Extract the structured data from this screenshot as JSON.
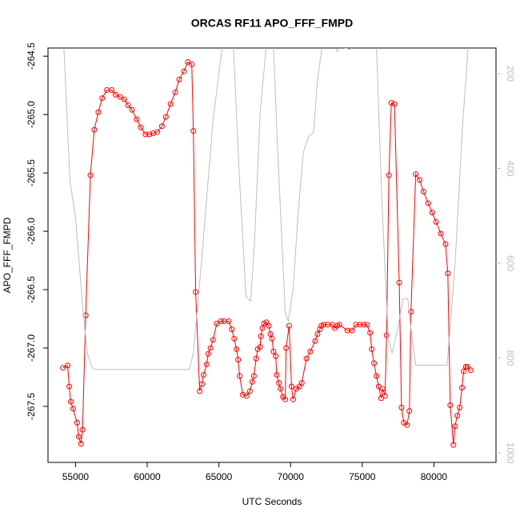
{
  "chart_data": {
    "type": "line",
    "title": "ORCAS RF11 APO_FFF_FMPD",
    "x_label": "UTC Seconds",
    "y_label": "APO_FFF_FMPD",
    "xlim": [
      53080,
      84330
    ],
    "xticks": [
      55000,
      60000,
      65000,
      70000,
      75000,
      80000
    ],
    "ylim": [
      -267.98,
      -264.43
    ],
    "yticks": [
      {
        "value": -267.5,
        "label": "-267.5"
      },
      {
        "value": -267,
        "label": "-267.0"
      },
      {
        "value": -266.5,
        "label": "-266.5"
      },
      {
        "value": -266,
        "label": "-266.0"
      },
      {
        "value": -265.5,
        "label": "-265.5"
      },
      {
        "value": -265,
        "label": "-265.0"
      },
      {
        "value": -264.5,
        "label": "-264.5"
      }
    ],
    "y2lim": [
      1020,
      146
    ],
    "y2ticks": [
      200,
      400,
      600,
      800,
      1000
    ],
    "series": [
      {
        "color": "#ff0000",
        "markers": true,
        "x": [
          54120,
          54450,
          54560,
          54670,
          54830,
          55110,
          55220,
          55380,
          55490,
          55710,
          56040,
          56310,
          56590,
          56860,
          57190,
          57520,
          57790,
          58120,
          58400,
          58670,
          58940,
          59270,
          59550,
          59880,
          60150,
          60420,
          60700,
          61030,
          61300,
          61630,
          61960,
          62230,
          62560,
          62830,
          63110,
          63220,
          63380,
          63660,
          63820,
          63930,
          64150,
          64260,
          64420,
          64590,
          64860,
          65140,
          65360,
          65680,
          65900,
          66070,
          66230,
          66340,
          66450,
          66670,
          66940,
          67160,
          67330,
          67440,
          67600,
          67710,
          67880,
          67930,
          68040,
          68150,
          68310,
          68480,
          68590,
          68700,
          68810,
          68970,
          69030,
          69190,
          69300,
          69470,
          69630,
          69690,
          69900,
          70070,
          70180,
          70400,
          70620,
          70780,
          71110,
          71380,
          71710,
          71880,
          72040,
          72150,
          72310,
          72590,
          72920,
          73080,
          73250,
          73410,
          73960,
          74290,
          74560,
          74840,
          75110,
          75330,
          75550,
          75660,
          75820,
          75990,
          76150,
          76320,
          76420,
          76590,
          76700,
          76860,
          77030,
          77250,
          77580,
          77740,
          77900,
          78120,
          78290,
          78400,
          78730,
          79000,
          79270,
          79600,
          79880,
          80150,
          80480,
          80810,
          80970,
          81140,
          81360,
          81470,
          81630,
          81800,
          81960,
          82070,
          82230,
          82340,
          82560
        ],
        "values": [
          -267.17,
          -267.15,
          -267.33,
          -267.46,
          -267.52,
          -267.64,
          -267.76,
          -267.82,
          -267.7,
          -266.72,
          -265.52,
          -265.13,
          -264.98,
          -264.86,
          -264.79,
          -264.79,
          -264.83,
          -264.85,
          -264.87,
          -264.92,
          -264.96,
          -265.04,
          -265.11,
          -265.17,
          -265.17,
          -265.16,
          -265.15,
          -265.1,
          -265.02,
          -264.91,
          -264.81,
          -264.7,
          -264.63,
          -264.55,
          -264.57,
          -265.14,
          -266.52,
          -267.37,
          -267.31,
          -267.23,
          -267.14,
          -267.05,
          -267,
          -266.93,
          -266.79,
          -266.77,
          -266.77,
          -266.77,
          -266.84,
          -266.92,
          -267.01,
          -267.1,
          -267.24,
          -267.4,
          -267.41,
          -267.37,
          -267.29,
          -267.24,
          -267.09,
          -267.01,
          -266.99,
          -266.9,
          -266.83,
          -266.79,
          -266.78,
          -266.81,
          -266.88,
          -266.92,
          -267.03,
          -267.07,
          -267.23,
          -267.3,
          -267.35,
          -267.42,
          -267.44,
          -267,
          -266.81,
          -267.33,
          -267.44,
          -267.35,
          -267.33,
          -267.3,
          -267.09,
          -267.03,
          -266.94,
          -266.88,
          -266.84,
          -266.81,
          -266.8,
          -266.8,
          -266.8,
          -266.83,
          -266.81,
          -266.8,
          -266.85,
          -266.85,
          -266.8,
          -266.8,
          -266.8,
          -266.8,
          -266.87,
          -267.01,
          -267.13,
          -267.24,
          -267.33,
          -267.43,
          -267.35,
          -267.41,
          -266.89,
          -265.52,
          -264.9,
          -264.91,
          -266.44,
          -267.51,
          -267.64,
          -267.66,
          -267.54,
          -266.69,
          -265.51,
          -265.56,
          -265.66,
          -265.76,
          -265.84,
          -265.92,
          -266.02,
          -266.11,
          -266.36,
          -267.49,
          -267.83,
          -267.67,
          -267.58,
          -267.51,
          -267.34,
          -267.2,
          -267.16,
          -267.16,
          -267.19
        ]
      },
      {
        "color": "#bebebe",
        "axis": "y2",
        "markers": false,
        "x": [
          54180,
          54610,
          55000,
          55490,
          55820,
          56150,
          56370,
          62940,
          63220,
          63770,
          64590,
          65250,
          66010,
          66400,
          66890,
          67220,
          67490,
          67880,
          68310,
          68810,
          69080,
          69630,
          69850,
          70180,
          70510,
          70890,
          71270,
          71600,
          71880,
          72210,
          73030,
          73250,
          73470,
          74180,
          74450,
          75990,
          76370,
          76810,
          77080,
          77470,
          77850,
          78180,
          78400,
          78730,
          80920,
          81470,
          82020,
          82400
        ],
        "values": [
          140,
          426,
          502,
          688,
          790,
          820,
          824,
          824,
          790,
          604,
          299,
          140,
          140,
          400,
          671,
          680,
          553,
          282,
          140,
          140,
          349,
          705,
          722,
          654,
          502,
          366,
          332,
          324,
          214,
          140,
          140,
          154,
          143,
          149,
          140,
          140,
          468,
          756,
          790,
          739,
          675,
          675,
          739,
          815,
          815,
          604,
          299,
          140
        ]
      }
    ]
  }
}
